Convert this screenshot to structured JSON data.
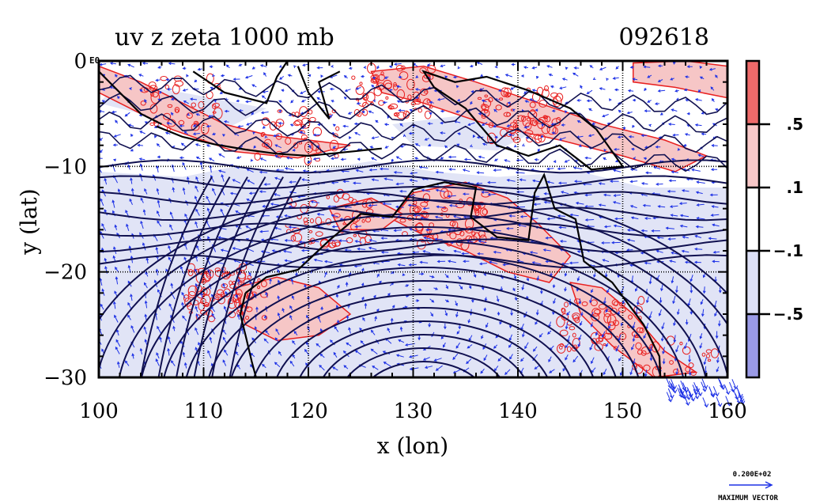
{
  "chart_data": {
    "type": "heatmap",
    "title_left": "uv z zeta 1000 mb",
    "title_right": "092618",
    "xlabel": "x (lon)",
    "ylabel": "y (lat)",
    "xlim": [
      100,
      160
    ],
    "ylim": [
      -30,
      0
    ],
    "x_ticks": [
      100,
      110,
      120,
      130,
      140,
      150,
      160
    ],
    "x_tick_labels": [
      "100",
      "110",
      "120",
      "130",
      "140",
      "150",
      "160"
    ],
    "y_ticks": [
      0,
      -10,
      -20,
      -30
    ],
    "y_tick_labels": [
      "0",
      "−10",
      "−20",
      "−30"
    ],
    "y_tick_suffix_top": "E0",
    "grid": true,
    "colorbar": {
      "levels": [
        ".5",
        ".1",
        "−.1",
        "−.5"
      ],
      "colors": [
        "#ee6a6a",
        "#f8c8c8",
        "#ffffff",
        "#dde0f6",
        "#9a9ae6"
      ]
    },
    "layers": [
      "uv wind vectors",
      "z contours",
      "zeta shading"
    ],
    "colors": {
      "vector": "#1e32e6",
      "contour": "#101050",
      "zeta_pos": "#e82020",
      "zeta_neg": "#8a8ae0",
      "neg_fill": "#e1e4f6",
      "pos_fill": "#f6c6c6"
    }
  },
  "legend_vector": {
    "value": "0.200E+02",
    "label": "MAXIMUM VECTOR"
  }
}
